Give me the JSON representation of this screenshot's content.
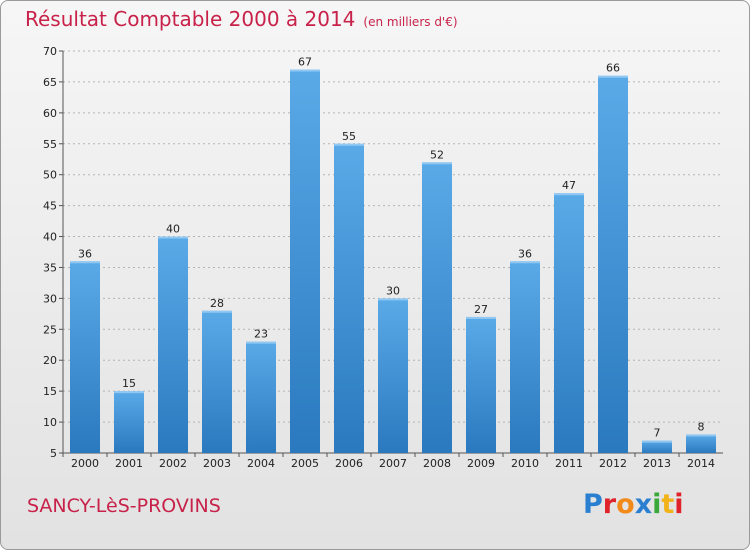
{
  "chart_data": {
    "type": "bar",
    "title": "Résultat Comptable 2000 à 2014",
    "subtitle": "(en milliers d'€)",
    "categories": [
      "2000",
      "2001",
      "2002",
      "2003",
      "2004",
      "2005",
      "2006",
      "2007",
      "2008",
      "2009",
      "2010",
      "2011",
      "2012",
      "2013",
      "2014"
    ],
    "values": [
      36,
      15,
      40,
      28,
      23,
      67,
      55,
      30,
      52,
      27,
      36,
      47,
      66,
      7,
      8
    ],
    "ylim": [
      5,
      70
    ],
    "yticks": [
      5,
      10,
      15,
      20,
      25,
      30,
      35,
      40,
      45,
      50,
      55,
      60,
      65,
      70
    ],
    "grid": true,
    "xlabel": "",
    "ylabel": ""
  },
  "footer": {
    "commune": "SANCY-LèS-PROVINS",
    "logo": "Proxiti"
  },
  "colors": {
    "title": "#c8224a",
    "bar_light": "#5aaae8",
    "bar_dark": "#2a79bf",
    "grid": "#b4b4b4"
  }
}
